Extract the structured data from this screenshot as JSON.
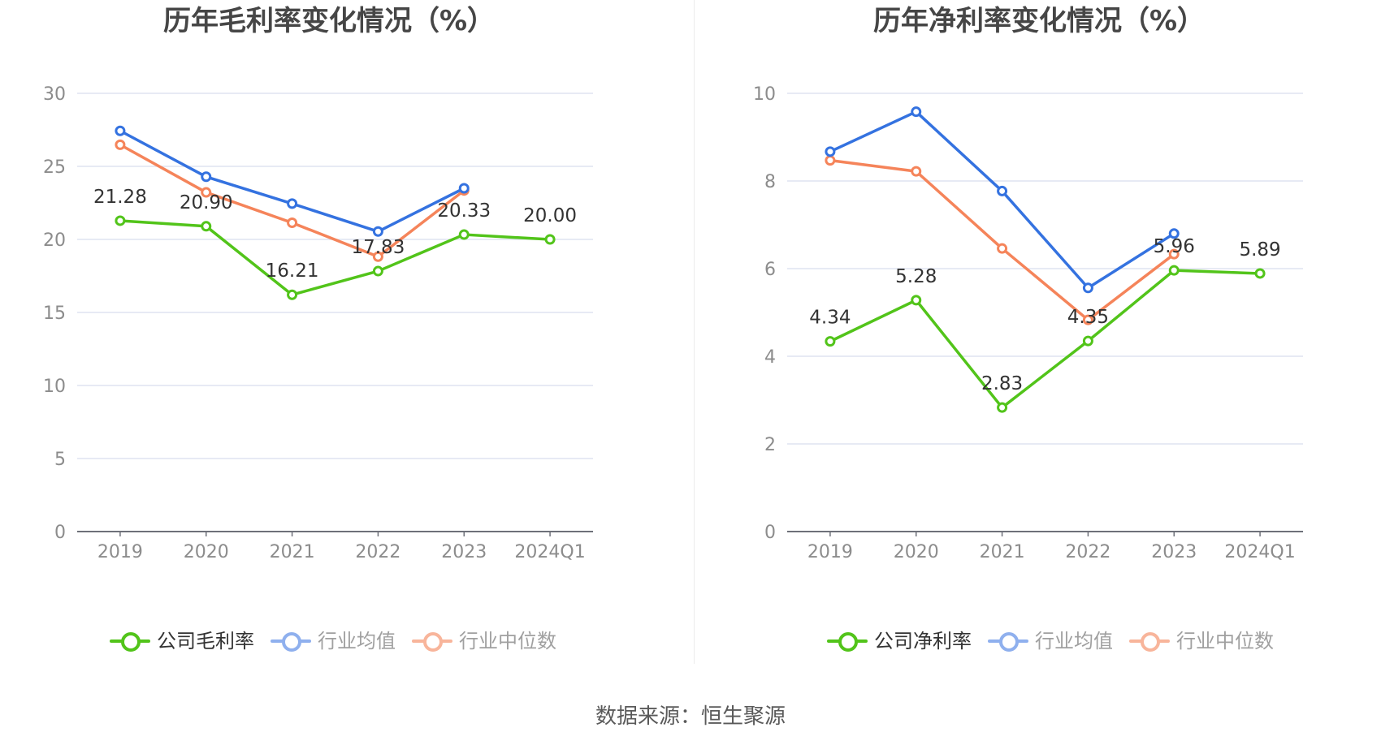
{
  "source": "数据来源：恒生聚源",
  "colors": {
    "company": "#52c41a",
    "industry_avg": "#3472e0",
    "industry_median": "#f5845a",
    "industry_avg_legend": "#8fb0ee",
    "industry_median_legend": "#f8b59b",
    "grid": "#dfe3f0",
    "axis": "#6e7079",
    "tick_label": "#8c8c8c",
    "data_label": "#333333"
  },
  "chart_data": [
    {
      "type": "line",
      "title": "历年毛利率变化情况（%）",
      "xlabel": "",
      "ylabel": "",
      "categories": [
        "2019",
        "2020",
        "2021",
        "2022",
        "2023",
        "2024Q1"
      ],
      "ylim": [
        0,
        30
      ],
      "yticks": [
        0,
        5,
        10,
        15,
        20,
        25,
        30
      ],
      "ytick_labels": [
        "0",
        "5",
        "10",
        "15",
        "20",
        "25",
        "30"
      ],
      "grid": true,
      "legend_position": "bottom",
      "series": [
        {
          "name": "公司毛利率",
          "key": "company",
          "values": [
            21.28,
            20.9,
            16.21,
            17.83,
            20.33,
            20.0
          ],
          "labels": [
            "21.28",
            "20.90",
            "16.21",
            "17.83",
            "20.33",
            "20.00"
          ]
        },
        {
          "name": "行业均值",
          "key": "industry_avg",
          "values": [
            27.43,
            24.29,
            22.45,
            20.54,
            23.5,
            null
          ]
        },
        {
          "name": "行业中位数",
          "key": "industry_median",
          "values": [
            26.48,
            23.22,
            21.14,
            18.82,
            23.35,
            null
          ]
        }
      ]
    },
    {
      "type": "line",
      "title": "历年净利率变化情况（%）",
      "xlabel": "",
      "ylabel": "",
      "categories": [
        "2019",
        "2020",
        "2021",
        "2022",
        "2023",
        "2024Q1"
      ],
      "ylim": [
        0,
        10
      ],
      "yticks": [
        0,
        2,
        4,
        6,
        8,
        10
      ],
      "ytick_labels": [
        "0",
        "2",
        "4",
        "6",
        "8",
        "10"
      ],
      "grid": true,
      "legend_position": "bottom",
      "series": [
        {
          "name": "公司净利率",
          "key": "company",
          "values": [
            4.34,
            5.28,
            2.83,
            4.35,
            5.96,
            5.89
          ],
          "labels": [
            "4.34",
            "5.28",
            "2.83",
            "4.35",
            "5.96",
            "5.89"
          ]
        },
        {
          "name": "行业均值",
          "key": "industry_avg",
          "values": [
            8.67,
            9.58,
            7.77,
            5.56,
            6.8,
            null
          ]
        },
        {
          "name": "行业中位数",
          "key": "industry_median",
          "values": [
            8.47,
            8.22,
            6.46,
            4.83,
            6.33,
            null
          ]
        }
      ]
    }
  ]
}
